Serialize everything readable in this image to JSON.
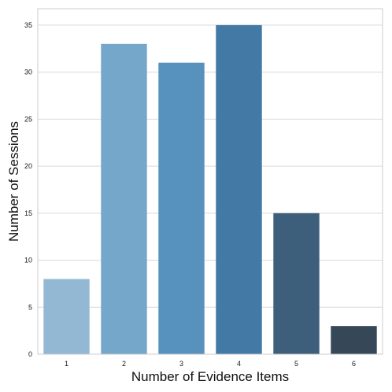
{
  "chart_data": {
    "type": "bar",
    "title": "",
    "xlabel": "Number of Evidence Items",
    "ylabel": "Number of Sessions",
    "categories": [
      "1",
      "2",
      "3",
      "4",
      "5",
      "6"
    ],
    "values": [
      8,
      33,
      31,
      35,
      15,
      3
    ],
    "ylim": [
      0,
      36.75
    ],
    "yticks": [
      "0",
      "5",
      "10",
      "15",
      "20",
      "25",
      "30",
      "35"
    ],
    "grid": "horizontal",
    "legend": "none",
    "bar_colors": [
      "#93b8d3",
      "#74a7c9",
      "#5792bf",
      "#4279a5",
      "#3d5f7b",
      "#364857"
    ],
    "grid_color": "#d9d9d9",
    "frame_color": "#cccccc"
  }
}
